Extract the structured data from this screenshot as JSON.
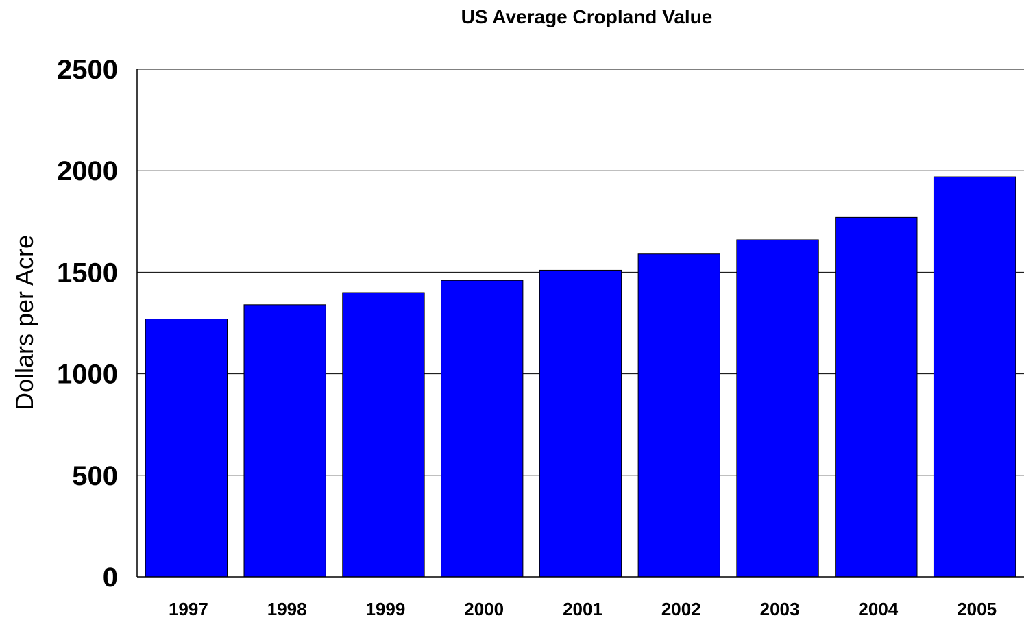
{
  "chart_data": {
    "type": "bar",
    "title": "US Average Cropland Value",
    "xlabel": "",
    "ylabel": "Dollars per Acre",
    "categories": [
      "1997",
      "1998",
      "1999",
      "2000",
      "2001",
      "2002",
      "2003",
      "2004",
      "2005"
    ],
    "values": [
      1270,
      1340,
      1400,
      1460,
      1510,
      1590,
      1660,
      1770,
      1970
    ],
    "ylim": [
      0,
      2500
    ],
    "yticks": [
      "0",
      "500",
      "1000",
      "1500",
      "2000",
      "2500"
    ],
    "grid": true,
    "legend": "none",
    "colors": {
      "bar": "#0000ff",
      "bar_edge": "#000000",
      "grid": "#000000",
      "axis": "#000000"
    }
  }
}
